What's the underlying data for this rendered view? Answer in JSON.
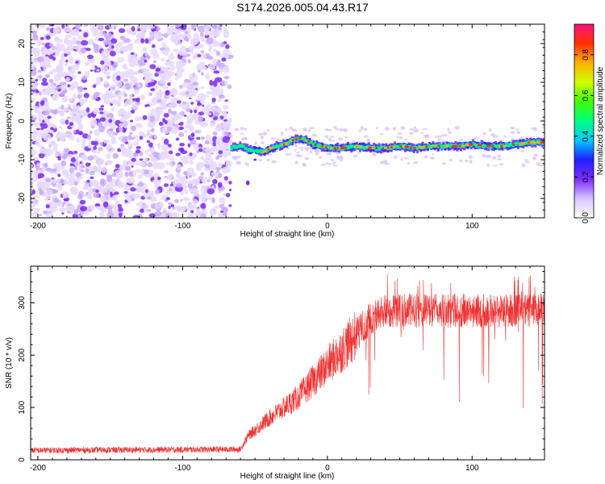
{
  "title": "S174.2026.005.04.43.R17",
  "chart_data": [
    {
      "type": "heatmap",
      "xlabel": "Height of straight line (km)",
      "ylabel": "Frequency (Hz)",
      "xlim": [
        -205,
        150
      ],
      "ylim": [
        -25,
        25
      ],
      "xticks": [
        -200,
        -100,
        0,
        100
      ],
      "yticks": [
        -20,
        -10,
        0,
        10,
        20
      ],
      "colorbar": {
        "label": "Normalized spectral amplitude",
        "range": [
          0,
          0.95
        ],
        "ticks": [
          0.0,
          0.2,
          0.4,
          0.6,
          0.8
        ]
      },
      "noise_region": {
        "x_start": -205,
        "x_end": -67
      },
      "signal_track": {
        "x": [
          -67,
          -60,
          -55,
          -50,
          -45,
          -40,
          -35,
          -30,
          -25,
          -20,
          -15,
          -10,
          -5,
          0,
          10,
          20,
          30,
          40,
          50,
          60,
          70,
          80,
          90,
          100,
          110,
          120,
          130,
          140,
          150
        ],
        "y": [
          -7,
          -6.5,
          -7.5,
          -7.5,
          -8,
          -7,
          -6.5,
          -6,
          -5,
          -4.5,
          -5,
          -6,
          -6.5,
          -7,
          -7,
          -6.5,
          -7,
          -7,
          -6.5,
          -7,
          -6.5,
          -6.5,
          -6.5,
          -6,
          -6.5,
          -6.5,
          -6,
          -5.5,
          -5.5
        ]
      }
    },
    {
      "type": "line",
      "xlabel": "Height of straight line (km)",
      "ylabel": "SNR (10 * v/v)",
      "xlim": [
        -205,
        150
      ],
      "ylim": [
        0,
        370
      ],
      "xticks": [
        -200,
        -100,
        0,
        100
      ],
      "yticks": [
        0,
        100,
        200,
        300
      ],
      "color": "#ef3333",
      "trend": {
        "x": [
          -205,
          -60,
          -55,
          -40,
          -20,
          0,
          10,
          20,
          30,
          40,
          60,
          80,
          100,
          120,
          150
        ],
        "y": [
          18,
          20,
          45,
          80,
          120,
          180,
          210,
          240,
          270,
          285,
          285,
          285,
          285,
          285,
          285
        ]
      }
    }
  ]
}
